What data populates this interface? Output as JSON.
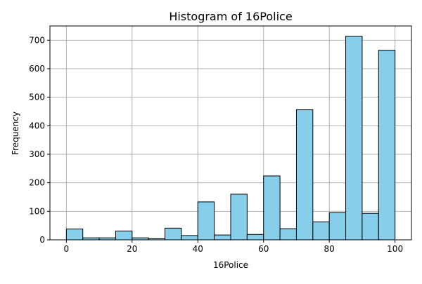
{
  "chart_data": {
    "type": "bar",
    "title": "Histogram of 16Police",
    "xlabel": "16Police",
    "ylabel": "Frequency",
    "xlim": [
      -5,
      105
    ],
    "ylim": [
      0,
      750
    ],
    "grid": true,
    "bar_color": "#87ceeb",
    "edge_color": "#000000",
    "grid_color": "#b0b0b0",
    "x_ticks": [
      0,
      20,
      40,
      60,
      80,
      100
    ],
    "y_ticks": [
      0,
      100,
      200,
      300,
      400,
      500,
      600,
      700
    ],
    "bins": [
      {
        "start": 0,
        "end": 5,
        "count": 38
      },
      {
        "start": 5,
        "end": 10,
        "count": 7
      },
      {
        "start": 10,
        "end": 15,
        "count": 7
      },
      {
        "start": 15,
        "end": 20,
        "count": 31
      },
      {
        "start": 20,
        "end": 25,
        "count": 7
      },
      {
        "start": 25,
        "end": 30,
        "count": 4
      },
      {
        "start": 30,
        "end": 35,
        "count": 41
      },
      {
        "start": 35,
        "end": 40,
        "count": 15
      },
      {
        "start": 40,
        "end": 45,
        "count": 133
      },
      {
        "start": 45,
        "end": 50,
        "count": 17
      },
      {
        "start": 50,
        "end": 55,
        "count": 160
      },
      {
        "start": 55,
        "end": 60,
        "count": 19
      },
      {
        "start": 60,
        "end": 65,
        "count": 224
      },
      {
        "start": 65,
        "end": 70,
        "count": 39
      },
      {
        "start": 70,
        "end": 75,
        "count": 456
      },
      {
        "start": 75,
        "end": 80,
        "count": 63
      },
      {
        "start": 80,
        "end": 85,
        "count": 95
      },
      {
        "start": 85,
        "end": 90,
        "count": 714
      },
      {
        "start": 90,
        "end": 95,
        "count": 93
      },
      {
        "start": 95,
        "end": 100,
        "count": 665
      }
    ]
  }
}
